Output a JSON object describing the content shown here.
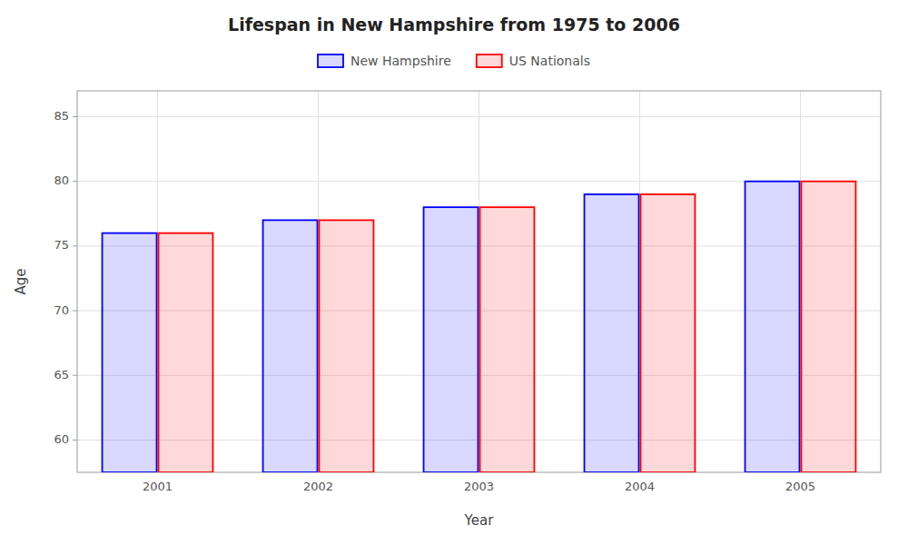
{
  "chart_data": {
    "type": "bar",
    "title": "Lifespan in New Hampshire from 1975 to 2006",
    "x_label": "Year",
    "y_label": "Age",
    "categories": [
      "2001",
      "2002",
      "2003",
      "2004",
      "2005"
    ],
    "series": [
      {
        "name": "New Hampshire",
        "color": "#0000ff",
        "values": [
          76,
          77,
          78,
          79,
          80
        ]
      },
      {
        "name": "US Nationals",
        "color": "#ff0000",
        "values": [
          76,
          77,
          78,
          79,
          80
        ]
      }
    ],
    "ylim": [
      57.5,
      87
    ],
    "yticks": [
      60,
      65,
      70,
      75,
      80,
      85
    ],
    "grid": true,
    "legend": "top"
  }
}
